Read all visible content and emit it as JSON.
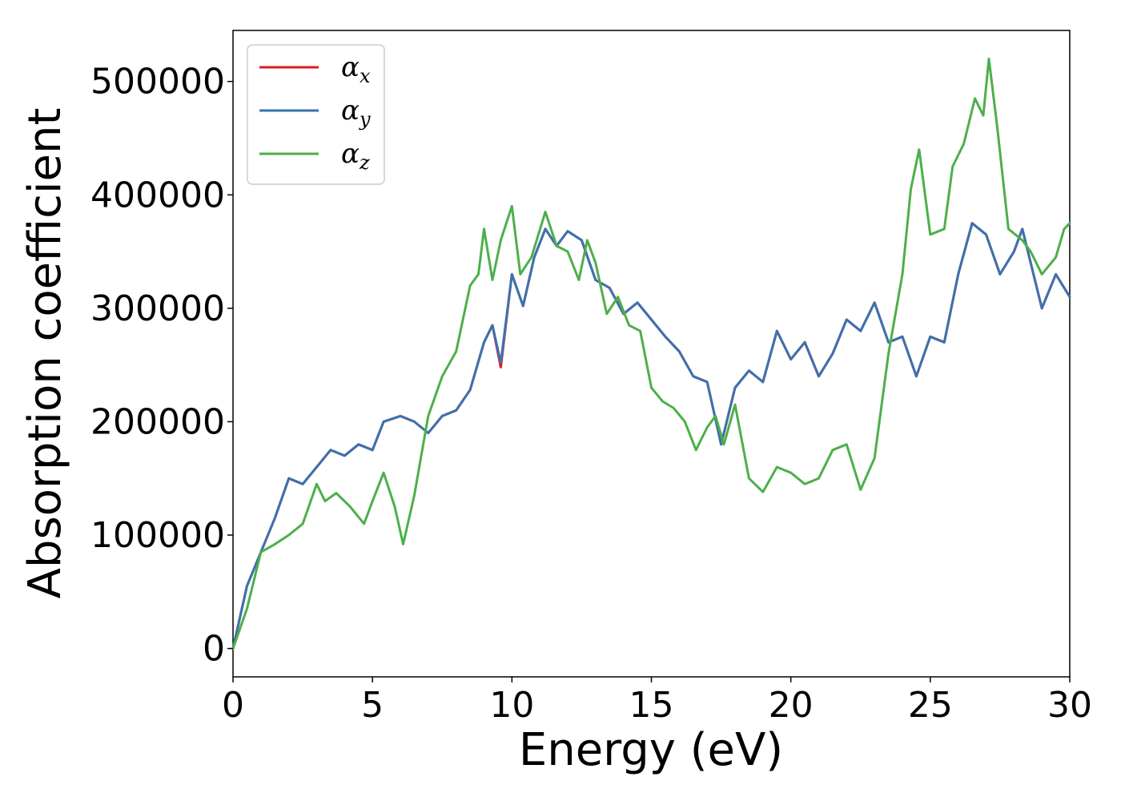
{
  "chart_data": {
    "type": "line",
    "xlabel": "Energy (eV)",
    "ylabel": "Absorption coefficient",
    "xlim": [
      0,
      30
    ],
    "ylim": [
      -25000,
      545000
    ],
    "x_ticks": [
      0,
      5,
      10,
      15,
      20,
      25,
      30
    ],
    "y_ticks": [
      0,
      100000,
      200000,
      300000,
      400000,
      500000
    ],
    "legend_position": "top-left",
    "grid": false,
    "series": [
      {
        "name": "α",
        "subscript": "x",
        "color": "#e41a1c",
        "points": [
          [
            0,
            0
          ],
          [
            0.5,
            55000
          ],
          [
            1,
            85000
          ],
          [
            1.5,
            115000
          ],
          [
            2,
            150000
          ],
          [
            2.5,
            145000
          ],
          [
            3,
            160000
          ],
          [
            3.5,
            175000
          ],
          [
            4,
            170000
          ],
          [
            4.5,
            180000
          ],
          [
            5,
            175000
          ],
          [
            5.4,
            200000
          ],
          [
            6,
            205000
          ],
          [
            6.5,
            200000
          ],
          [
            7,
            190000
          ],
          [
            7.5,
            205000
          ],
          [
            8,
            210000
          ],
          [
            8.5,
            228000
          ],
          [
            9,
            270000
          ],
          [
            9.3,
            285000
          ],
          [
            9.6,
            248000
          ],
          [
            10,
            330000
          ],
          [
            10.4,
            302000
          ],
          [
            10.8,
            345000
          ],
          [
            11.2,
            370000
          ],
          [
            11.6,
            355000
          ],
          [
            12,
            368000
          ],
          [
            12.5,
            360000
          ],
          [
            13,
            325000
          ],
          [
            13.5,
            318000
          ],
          [
            14,
            295000
          ],
          [
            14.5,
            305000
          ],
          [
            15,
            290000
          ],
          [
            15.5,
            275000
          ],
          [
            16,
            262000
          ],
          [
            16.5,
            240000
          ],
          [
            17,
            235000
          ],
          [
            17.5,
            180000
          ],
          [
            18,
            230000
          ],
          [
            18.5,
            245000
          ],
          [
            19,
            235000
          ],
          [
            19.5,
            280000
          ],
          [
            20,
            255000
          ],
          [
            20.5,
            270000
          ],
          [
            21,
            240000
          ],
          [
            21.5,
            260000
          ],
          [
            22,
            290000
          ],
          [
            22.5,
            280000
          ],
          [
            23,
            305000
          ],
          [
            23.5,
            270000
          ],
          [
            24,
            275000
          ],
          [
            24.5,
            240000
          ],
          [
            25,
            275000
          ],
          [
            25.5,
            270000
          ],
          [
            26,
            330000
          ],
          [
            26.5,
            375000
          ],
          [
            27,
            365000
          ],
          [
            27.5,
            330000
          ],
          [
            28,
            350000
          ],
          [
            28.3,
            370000
          ],
          [
            28.6,
            340000
          ],
          [
            29,
            300000
          ],
          [
            29.5,
            330000
          ],
          [
            30,
            310000
          ]
        ]
      },
      {
        "name": "α",
        "subscript": "y",
        "color": "#3a72b0",
        "points": [
          [
            0,
            0
          ],
          [
            0.5,
            55000
          ],
          [
            1,
            85000
          ],
          [
            1.5,
            115000
          ],
          [
            2,
            150000
          ],
          [
            2.5,
            145000
          ],
          [
            3,
            160000
          ],
          [
            3.5,
            175000
          ],
          [
            4,
            170000
          ],
          [
            4.5,
            180000
          ],
          [
            5,
            175000
          ],
          [
            5.4,
            200000
          ],
          [
            6,
            205000
          ],
          [
            6.5,
            200000
          ],
          [
            7,
            190000
          ],
          [
            7.5,
            205000
          ],
          [
            8,
            210000
          ],
          [
            8.5,
            228000
          ],
          [
            9,
            270000
          ],
          [
            9.3,
            285000
          ],
          [
            9.6,
            252000
          ],
          [
            10,
            330000
          ],
          [
            10.4,
            302000
          ],
          [
            10.8,
            345000
          ],
          [
            11.2,
            370000
          ],
          [
            11.6,
            355000
          ],
          [
            12,
            368000
          ],
          [
            12.5,
            360000
          ],
          [
            13,
            325000
          ],
          [
            13.5,
            318000
          ],
          [
            14,
            295000
          ],
          [
            14.5,
            305000
          ],
          [
            15,
            290000
          ],
          [
            15.5,
            275000
          ],
          [
            16,
            262000
          ],
          [
            16.5,
            240000
          ],
          [
            17,
            235000
          ],
          [
            17.5,
            180000
          ],
          [
            18,
            230000
          ],
          [
            18.5,
            245000
          ],
          [
            19,
            235000
          ],
          [
            19.5,
            280000
          ],
          [
            20,
            255000
          ],
          [
            20.5,
            270000
          ],
          [
            21,
            240000
          ],
          [
            21.5,
            260000
          ],
          [
            22,
            290000
          ],
          [
            22.5,
            280000
          ],
          [
            23,
            305000
          ],
          [
            23.5,
            270000
          ],
          [
            24,
            275000
          ],
          [
            24.5,
            240000
          ],
          [
            25,
            275000
          ],
          [
            25.5,
            270000
          ],
          [
            26,
            330000
          ],
          [
            26.5,
            375000
          ],
          [
            27,
            365000
          ],
          [
            27.5,
            330000
          ],
          [
            28,
            350000
          ],
          [
            28.3,
            370000
          ],
          [
            28.6,
            340000
          ],
          [
            29,
            300000
          ],
          [
            29.5,
            330000
          ],
          [
            30,
            310000
          ]
        ]
      },
      {
        "name": "α",
        "subscript": "z",
        "color": "#4daf4a",
        "points": [
          [
            0,
            0
          ],
          [
            0.5,
            35000
          ],
          [
            1,
            85000
          ],
          [
            1.5,
            92000
          ],
          [
            2,
            100000
          ],
          [
            2.5,
            110000
          ],
          [
            3,
            145000
          ],
          [
            3.3,
            130000
          ],
          [
            3.7,
            137000
          ],
          [
            4.2,
            125000
          ],
          [
            4.7,
            110000
          ],
          [
            5,
            130000
          ],
          [
            5.4,
            155000
          ],
          [
            5.8,
            125000
          ],
          [
            6.1,
            92000
          ],
          [
            6.5,
            135000
          ],
          [
            7,
            205000
          ],
          [
            7.5,
            240000
          ],
          [
            8,
            262000
          ],
          [
            8.5,
            320000
          ],
          [
            8.8,
            330000
          ],
          [
            9,
            370000
          ],
          [
            9.3,
            325000
          ],
          [
            9.6,
            360000
          ],
          [
            10,
            390000
          ],
          [
            10.3,
            330000
          ],
          [
            10.7,
            345000
          ],
          [
            11.2,
            385000
          ],
          [
            11.6,
            355000
          ],
          [
            12,
            350000
          ],
          [
            12.4,
            325000
          ],
          [
            12.7,
            360000
          ],
          [
            13,
            340000
          ],
          [
            13.4,
            295000
          ],
          [
            13.8,
            310000
          ],
          [
            14.2,
            285000
          ],
          [
            14.6,
            280000
          ],
          [
            15,
            230000
          ],
          [
            15.4,
            218000
          ],
          [
            15.8,
            212000
          ],
          [
            16.2,
            200000
          ],
          [
            16.6,
            175000
          ],
          [
            17,
            195000
          ],
          [
            17.3,
            205000
          ],
          [
            17.6,
            180000
          ],
          [
            18,
            215000
          ],
          [
            18.5,
            150000
          ],
          [
            19,
            138000
          ],
          [
            19.5,
            160000
          ],
          [
            20,
            155000
          ],
          [
            20.5,
            145000
          ],
          [
            21,
            150000
          ],
          [
            21.5,
            175000
          ],
          [
            22,
            180000
          ],
          [
            22.5,
            140000
          ],
          [
            23,
            168000
          ],
          [
            23.5,
            260000
          ],
          [
            24,
            330000
          ],
          [
            24.3,
            405000
          ],
          [
            24.6,
            440000
          ],
          [
            25,
            365000
          ],
          [
            25.5,
            370000
          ],
          [
            25.8,
            425000
          ],
          [
            26.2,
            445000
          ],
          [
            26.6,
            485000
          ],
          [
            26.9,
            470000
          ],
          [
            27.1,
            520000
          ],
          [
            27.4,
            460000
          ],
          [
            27.8,
            370000
          ],
          [
            28.3,
            360000
          ],
          [
            28.6,
            350000
          ],
          [
            29,
            330000
          ],
          [
            29.5,
            345000
          ],
          [
            29.8,
            370000
          ],
          [
            30,
            375000
          ]
        ]
      }
    ]
  }
}
